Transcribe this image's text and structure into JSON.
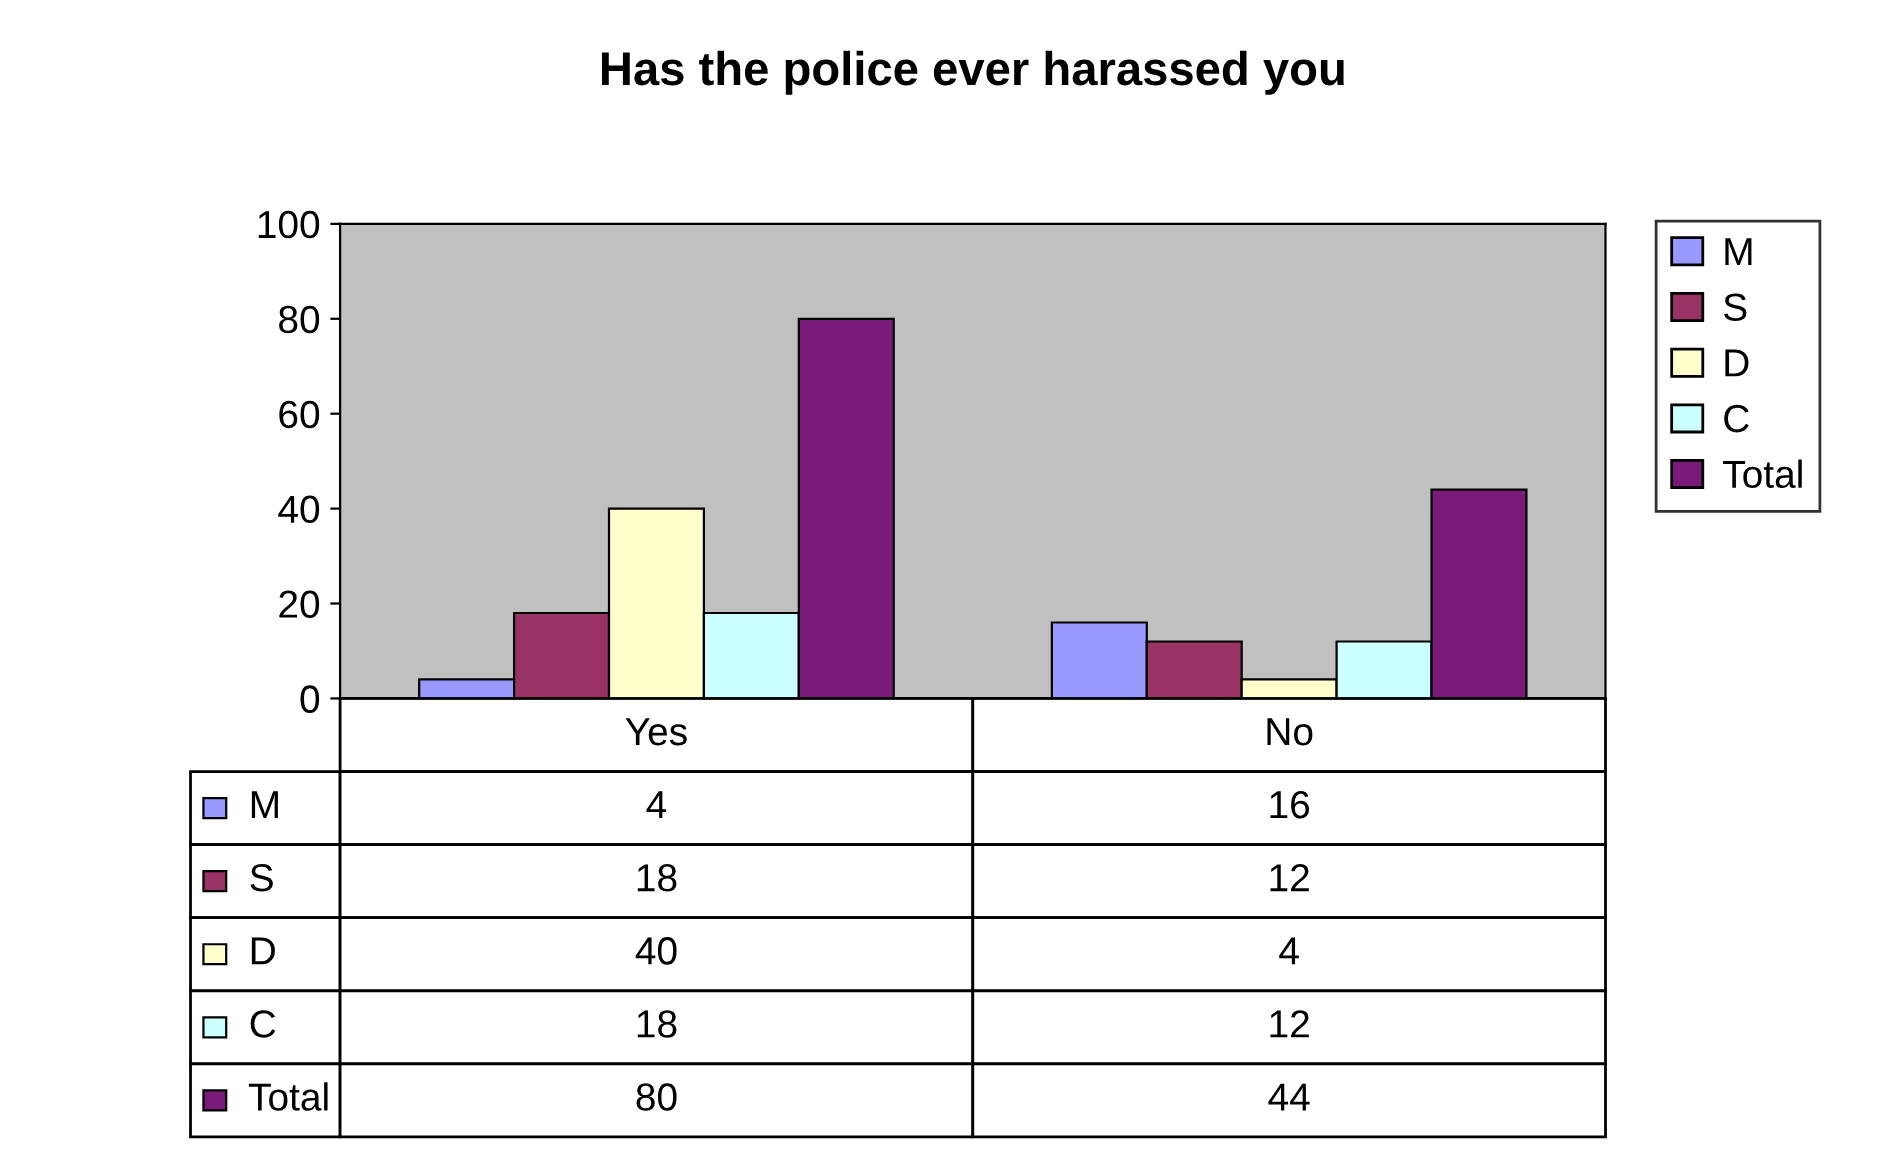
{
  "chart_data": {
    "type": "bar",
    "title": "Has the police ever harassed you",
    "categories": [
      "Yes",
      "No"
    ],
    "series": [
      {
        "name": "M",
        "color": "#9999ff",
        "values": [
          4,
          16
        ]
      },
      {
        "name": "S",
        "color": "#993366",
        "values": [
          18,
          12
        ]
      },
      {
        "name": "D",
        "color": "#ffffcc",
        "values": [
          40,
          4
        ]
      },
      {
        "name": "C",
        "color": "#ccffff",
        "values": [
          18,
          12
        ]
      },
      {
        "name": "Total",
        "color": "#7a1a7a",
        "values": [
          80,
          44
        ]
      }
    ],
    "ylim": [
      0,
      100
    ],
    "yticks": [
      0,
      20,
      40,
      60,
      80,
      100
    ],
    "grid": false,
    "legend": "right",
    "data_labels": true
  }
}
